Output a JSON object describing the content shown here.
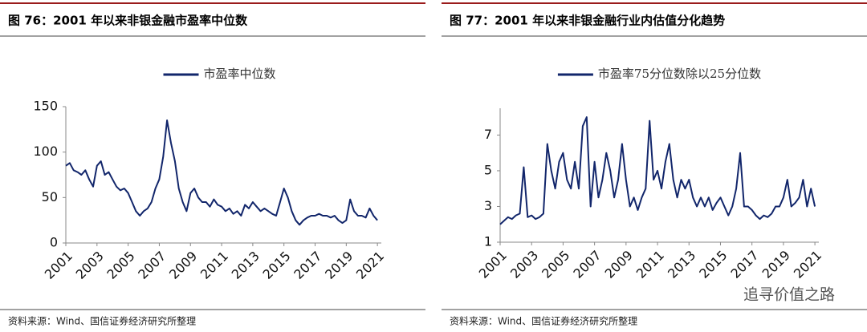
{
  "chart_data": [
    {
      "type": "line",
      "title": "图 76：2001 年以来非银金融市盈率中位数",
      "source": "资料来源：Wind、国信证券经济研究所整理",
      "xlim": [
        2001,
        2021.25
      ],
      "xticks": [
        2001,
        2003,
        2005,
        2007,
        2009,
        2011,
        2013,
        2015,
        2017,
        2019,
        2021
      ],
      "ylim": [
        0,
        150
      ],
      "yticks": [
        0,
        50,
        100,
        150
      ],
      "series": [
        {
          "name": "市盈率中位数",
          "color": "#12266b",
          "x": [
            2001,
            2001.25,
            2001.5,
            2001.75,
            2002,
            2002.25,
            2002.5,
            2002.75,
            2003,
            2003.25,
            2003.5,
            2003.75,
            2004,
            2004.25,
            2004.5,
            2004.75,
            2005,
            2005.25,
            2005.5,
            2005.75,
            2006,
            2006.25,
            2006.5,
            2006.75,
            2007,
            2007.25,
            2007.5,
            2007.75,
            2008,
            2008.25,
            2008.5,
            2008.75,
            2009,
            2009.25,
            2009.5,
            2009.75,
            2010,
            2010.25,
            2010.5,
            2010.75,
            2011,
            2011.25,
            2011.5,
            2011.75,
            2012,
            2012.25,
            2012.5,
            2012.75,
            2013,
            2013.25,
            2013.5,
            2013.75,
            2014,
            2014.25,
            2014.5,
            2014.75,
            2015,
            2015.25,
            2015.5,
            2015.75,
            2016,
            2016.25,
            2016.5,
            2016.75,
            2017,
            2017.25,
            2017.5,
            2017.75,
            2018,
            2018.25,
            2018.5,
            2018.75,
            2019,
            2019.25,
            2019.5,
            2019.75,
            2020,
            2020.25,
            2020.5,
            2020.75,
            2021
          ],
          "values": [
            85,
            88,
            80,
            78,
            75,
            80,
            70,
            62,
            85,
            90,
            75,
            78,
            70,
            62,
            58,
            60,
            55,
            45,
            35,
            30,
            35,
            38,
            45,
            60,
            70,
            95,
            135,
            110,
            90,
            60,
            45,
            35,
            55,
            60,
            50,
            45,
            45,
            40,
            48,
            42,
            40,
            35,
            38,
            32,
            35,
            30,
            42,
            38,
            45,
            40,
            35,
            38,
            35,
            32,
            30,
            45,
            60,
            50,
            35,
            25,
            20,
            25,
            28,
            30,
            30,
            32,
            30,
            30,
            28,
            30,
            25,
            22,
            25,
            48,
            35,
            30,
            30,
            28,
            38,
            30,
            25
          ]
        }
      ]
    },
    {
      "type": "line",
      "title": "图 77：2001 年以来非银金融行业内估值分化趋势",
      "source": "资料来源：Wind、国信证券经济研究所整理",
      "xlim": [
        2001,
        2021.25
      ],
      "xticks": [
        2001,
        2003,
        2005,
        2007,
        2009,
        2011,
        2013,
        2015,
        2017,
        2019,
        2021
      ],
      "ylim": [
        1,
        8.5
      ],
      "yticks": [
        1,
        3,
        5,
        7
      ],
      "series": [
        {
          "name": "市盈率75分位数除以25分位数",
          "color": "#12266b",
          "x": [
            2001,
            2001.25,
            2001.5,
            2001.75,
            2002,
            2002.25,
            2002.5,
            2002.75,
            2003,
            2003.25,
            2003.5,
            2003.75,
            2004,
            2004.25,
            2004.5,
            2004.75,
            2005,
            2005.25,
            2005.5,
            2005.75,
            2006,
            2006.25,
            2006.5,
            2006.75,
            2007,
            2007.25,
            2007.5,
            2007.75,
            2008,
            2008.25,
            2008.5,
            2008.75,
            2009,
            2009.25,
            2009.5,
            2009.75,
            2010,
            2010.25,
            2010.5,
            2010.75,
            2011,
            2011.25,
            2011.5,
            2011.75,
            2012,
            2012.25,
            2012.5,
            2012.75,
            2013,
            2013.25,
            2013.5,
            2013.75,
            2014,
            2014.25,
            2014.5,
            2014.75,
            2015,
            2015.25,
            2015.5,
            2015.75,
            2016,
            2016.25,
            2016.5,
            2016.75,
            2017,
            2017.25,
            2017.5,
            2017.75,
            2018,
            2018.25,
            2018.5,
            2018.75,
            2019,
            2019.25,
            2019.5,
            2019.75,
            2020,
            2020.25,
            2020.5,
            2020.75,
            2021
          ],
          "values": [
            2.0,
            2.2,
            2.4,
            2.3,
            2.5,
            2.6,
            5.2,
            2.4,
            2.5,
            2.3,
            2.4,
            2.6,
            6.5,
            5.0,
            4.0,
            5.5,
            6.0,
            4.5,
            4.0,
            5.5,
            4.0,
            7.5,
            8.0,
            3.0,
            5.5,
            3.5,
            4.5,
            6.0,
            5.0,
            3.5,
            4.5,
            6.5,
            4.5,
            3.0,
            3.5,
            2.8,
            3.5,
            4.0,
            7.8,
            4.5,
            5.0,
            4.0,
            5.5,
            6.5,
            4.5,
            3.5,
            4.5,
            4.0,
            4.5,
            3.5,
            3.0,
            3.5,
            3.0,
            3.5,
            2.8,
            3.2,
            3.5,
            3.0,
            2.5,
            3.0,
            4.0,
            6.0,
            3.0,
            3.0,
            2.8,
            2.5,
            2.3,
            2.5,
            2.4,
            2.6,
            3.0,
            3.0,
            3.5,
            4.5,
            3.0,
            3.2,
            3.5,
            4.5,
            3.0,
            4.0,
            3.0
          ]
        }
      ]
    }
  ],
  "watermark": "追寻价值之路"
}
